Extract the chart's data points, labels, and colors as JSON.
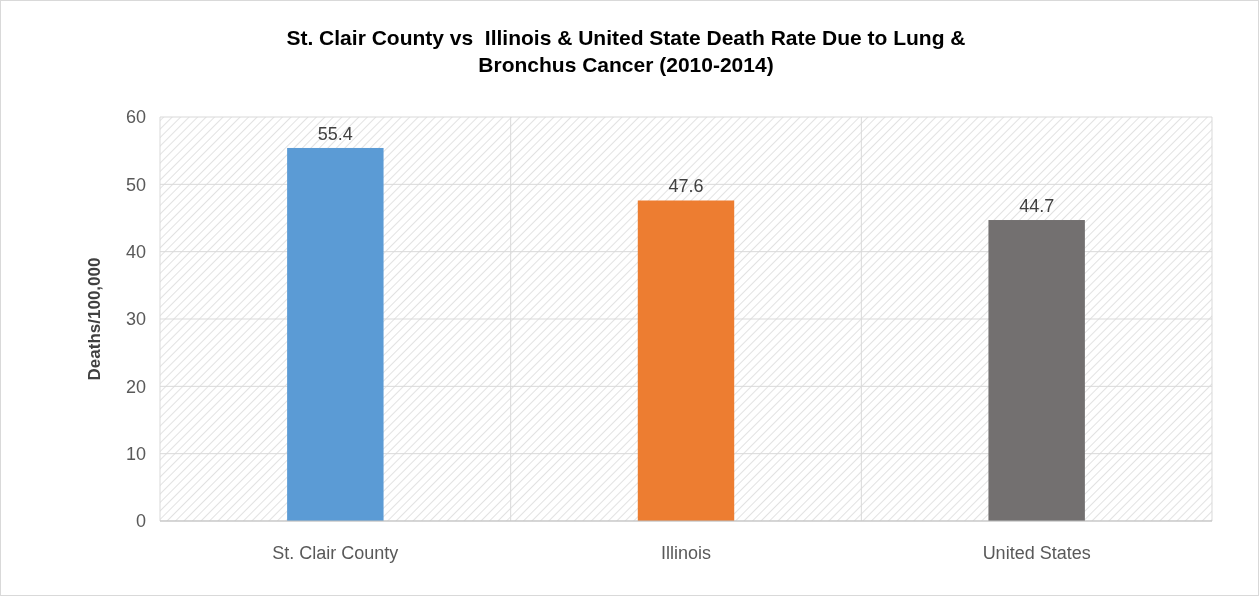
{
  "chart_data": {
    "type": "bar",
    "title": "St. Clair County vs  Illinois & United State Death Rate Due to Lung & Bronchus Cancer (2010-2014)",
    "ylabel": "Deaths/100,000",
    "categories": [
      "St. Clair County",
      "Illinois",
      "United States"
    ],
    "values": [
      55.4,
      47.6,
      44.7
    ],
    "colors": [
      "#5b9bd5",
      "#ed7d31",
      "#737070"
    ],
    "ylim": [
      0,
      60
    ],
    "yticks": [
      0,
      10,
      20,
      30,
      40,
      50,
      60
    ],
    "grid": true,
    "data_labels": true
  }
}
